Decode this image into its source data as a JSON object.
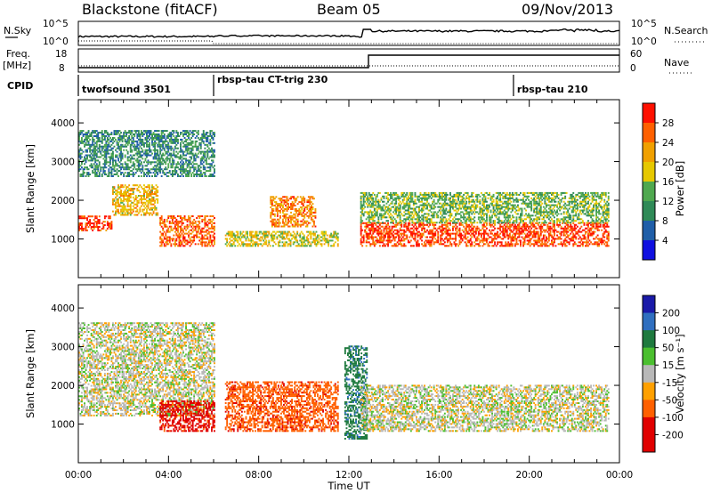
{
  "header": {
    "station": "Blackstone (fitACF)",
    "beam": "Beam 05",
    "date": "09/Nov/2013"
  },
  "top_panels": {
    "nsky_label": "N.Sky",
    "nsky_ticks": [
      "10^5",
      "10^0"
    ],
    "nsearch_label": "N.Search",
    "nsearch_ticks": [
      "10^5",
      "10^0"
    ],
    "freq_label": "Freq.",
    "freq_unit": "[MHz]",
    "freq_ticks": [
      "18",
      "8"
    ],
    "nave_label": "Nave",
    "nave_ticks": [
      "60",
      "0"
    ],
    "cpid_label": "CPID",
    "cpid_segments": [
      {
        "name": "twofsound 3501",
        "start": 0,
        "end": 6
      },
      {
        "name": "rbsp-tau CT-trig 230",
        "start": 6,
        "end": 19.3
      },
      {
        "name": "rbsp-tau 210",
        "start": 19.3,
        "end": 24
      }
    ]
  },
  "colors": {
    "power": [
      "#1010e0",
      "#1f5ea8",
      "#2f8a57",
      "#4fa84f",
      "#e6c800",
      "#f0a000",
      "#ff6000",
      "#ff1000"
    ],
    "velocity": [
      "#1a1aa8",
      "#2f6fbf",
      "#1f7a3f",
      "#4bbf2f",
      "#b8b8b8",
      "#ffa000",
      "#ff6000",
      "#e00000"
    ]
  },
  "chart_data": [
    {
      "type": "heatmap",
      "panel": "power",
      "xlabel": "",
      "ylabel": "Slant Range [km]",
      "xlim": [
        0,
        24
      ],
      "ylim": [
        0,
        4600
      ],
      "yticks": [
        1000,
        2000,
        3000,
        4000
      ],
      "colorbar": {
        "label": "Power [dB]",
        "range": [
          0,
          32
        ],
        "ticks": [
          "4",
          "8",
          "12",
          "16",
          "20",
          "24",
          "28"
        ]
      },
      "features": [
        {
          "t_start": 0.0,
          "t_end": 1.5,
          "range_km": [
            1200,
            1600
          ],
          "power_db": 28
        },
        {
          "t_start": 1.5,
          "t_end": 3.5,
          "range_km": [
            1600,
            2400
          ],
          "power_db": 20
        },
        {
          "t_start": 0.0,
          "t_end": 6.0,
          "range_km": [
            2600,
            3800
          ],
          "power_db": 10
        },
        {
          "t_start": 3.6,
          "t_end": 6.0,
          "range_km": [
            800,
            1600
          ],
          "power_db": 26
        },
        {
          "t_start": 6.5,
          "t_end": 11.5,
          "range_km": [
            800,
            1200
          ],
          "power_db": 18
        },
        {
          "t_start": 8.5,
          "t_end": 10.5,
          "range_km": [
            1300,
            2100
          ],
          "power_db": 24
        },
        {
          "t_start": 12.5,
          "t_end": 23.5,
          "range_km": [
            800,
            1400
          ],
          "power_db": 28
        },
        {
          "t_start": 12.5,
          "t_end": 23.5,
          "range_km": [
            1400,
            2200
          ],
          "power_db": 14
        }
      ]
    },
    {
      "type": "heatmap",
      "panel": "velocity",
      "xlabel": "Time UT",
      "ylabel": "Slant Range [km]",
      "xlim": [
        0,
        24
      ],
      "ylim": [
        0,
        4600
      ],
      "yticks": [
        1000,
        2000,
        3000,
        4000
      ],
      "xticks": [
        "00:00",
        "04:00",
        "08:00",
        "12:00",
        "16:00",
        "20:00",
        "00:00"
      ],
      "colorbar": {
        "label": "Velocity [m s⁻¹]",
        "range": [
          -250,
          250
        ],
        "ticks": [
          "200",
          "100",
          "50",
          "15",
          "-15",
          "-50",
          "-100",
          "-200"
        ]
      },
      "features": [
        {
          "t_start": 0.0,
          "t_end": 6.0,
          "range_km": [
            1200,
            3600
          ],
          "velocity": 0
        },
        {
          "t_start": 3.6,
          "t_end": 6.0,
          "range_km": [
            800,
            1600
          ],
          "velocity": -120
        },
        {
          "t_start": 6.5,
          "t_end": 11.5,
          "range_km": [
            800,
            2100
          ],
          "velocity": -80
        },
        {
          "t_start": 11.8,
          "t_end": 12.8,
          "range_km": [
            600,
            3000
          ],
          "velocity": 60
        },
        {
          "t_start": 12.5,
          "t_end": 23.5,
          "range_km": [
            800,
            2000
          ],
          "velocity": 0
        }
      ]
    }
  ]
}
